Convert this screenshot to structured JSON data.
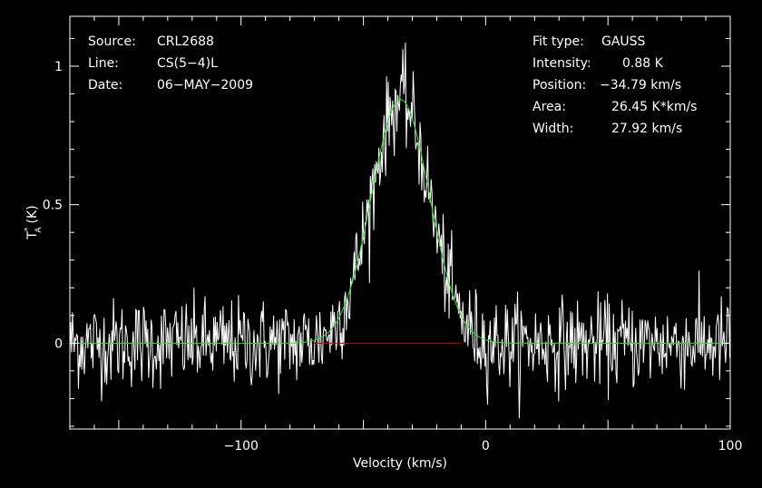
{
  "chart_data": {
    "type": "line",
    "xlabel": "Velocity (km/s)",
    "ylabel_main": "T",
    "ylabel_sub": "A",
    "ylabel_sup": "*",
    "ylabel_unit": "(K)",
    "xlim": [
      -170,
      100
    ],
    "ylim": [
      -0.31,
      1.18
    ],
    "x_ticks": [
      -100,
      0,
      100
    ],
    "x_tick_labels": [
      "−100",
      "0",
      "100"
    ],
    "y_ticks": [
      0,
      0.5,
      1
    ],
    "y_tick_labels": [
      "0",
      "0.5",
      "1"
    ],
    "grid": false,
    "baseline": 0,
    "fit": {
      "type": "GAUSS",
      "intensity": 0.88,
      "position": -34.79,
      "area": 26.45,
      "width": 27.92
    },
    "spectrum": {
      "noise_rms": 0.08,
      "x_step": 0.35
    },
    "colors": {
      "background": "#000000",
      "axes": "#ffffff",
      "spectrum": "#ffffff",
      "fit": "#33dd33",
      "baseline": "#cc0000"
    }
  },
  "info_left": [
    {
      "label": "Source:",
      "value": "CRL2688"
    },
    {
      "label": "Line:",
      "value": "CS(5−4)L"
    },
    {
      "label": "Date:",
      "value": "06−MAY−2009"
    }
  ],
  "info_right": [
    {
      "label": "Fit type:",
      "value": "GAUSS"
    },
    {
      "label": "Intensity:",
      "value": "0.88 K"
    },
    {
      "label": "Position:",
      "value": "−34.79 km/s"
    },
    {
      "label": "Area:",
      "value": "26.45 K*km/s"
    },
    {
      "label": "Width:",
      "value": "27.92 km/s"
    }
  ]
}
